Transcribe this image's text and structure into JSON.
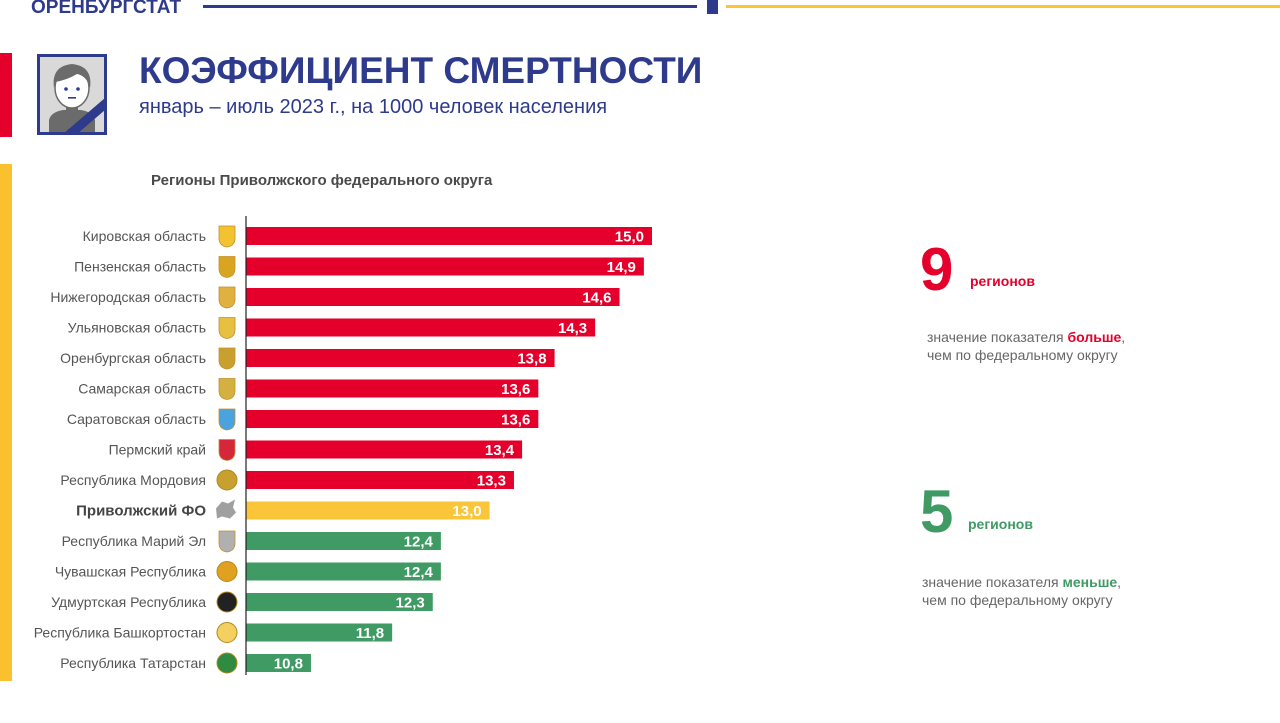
{
  "header": {
    "brand": "ОРЕНБУРГСТАТ",
    "title": "КОЭФФИЦИЕНТ СМЕРТНОСТИ",
    "subtitle": "январь – июль 2023 г., на 1000 человек населения",
    "icon": "portrait-mourning-icon"
  },
  "colors": {
    "brand_blue": "#2e3a8c",
    "above": "#e4002b",
    "average": "#fbc53a",
    "below": "#3f9a63",
    "accent_yellow": "#fbc02d"
  },
  "chart_data": {
    "type": "bar",
    "orientation": "horizontal",
    "title": "Регионы Приволжского федерального округа",
    "xlabel": "",
    "ylabel": "",
    "xlim": [
      10,
      15
    ],
    "grid": false,
    "categories": [
      "Кировская область",
      "Пензенская область",
      "Нижегородская область",
      "Ульяновская область",
      "Оренбургская область",
      "Самарская область",
      "Саратовская область",
      "Пермский край",
      "Республика Мордовия",
      "Приволжский ФО",
      "Республика Марий Эл",
      "Чувашская Республика",
      "Удмуртская Республика",
      "Республика Башкортостан",
      "Республика Татарстан"
    ],
    "values": [
      15.0,
      14.9,
      14.6,
      14.3,
      13.8,
      13.6,
      13.6,
      13.4,
      13.3,
      13.0,
      12.4,
      12.4,
      12.3,
      11.8,
      10.8
    ],
    "labels": [
      "15,0",
      "14,9",
      "14,6",
      "14,3",
      "13,8",
      "13,6",
      "13,6",
      "13,4",
      "13,3",
      "13,0",
      "12,4",
      "12,4",
      "12,3",
      "11,8",
      "10,8"
    ],
    "groups": [
      "above",
      "above",
      "above",
      "above",
      "above",
      "above",
      "above",
      "above",
      "above",
      "average",
      "below",
      "below",
      "below",
      "below",
      "below"
    ],
    "icons": [
      "coat-of-arms-kirov-icon",
      "coat-of-arms-penza-icon",
      "coat-of-arms-nizhny-icon",
      "coat-of-arms-ulyanovsk-icon",
      "coat-of-arms-orenburg-icon",
      "coat-of-arms-samara-icon",
      "coat-of-arms-saratov-icon",
      "coat-of-arms-perm-icon",
      "coat-of-arms-mordovia-icon",
      "federal-district-map-icon",
      "coat-of-arms-mari-el-icon",
      "coat-of-arms-chuvashia-icon",
      "coat-of-arms-udmurtia-icon",
      "coat-of-arms-bashkortostan-icon",
      "coat-of-arms-tatarstan-icon"
    ]
  },
  "summary": {
    "above": {
      "count": "9",
      "unit": "регионов",
      "text_before": "значение показателя ",
      "highlight": "больше",
      "text_after": ",",
      "line2": "чем по федеральному округу"
    },
    "below": {
      "count": "5",
      "unit": "регионов",
      "text_before": "значение показателя ",
      "highlight": "меньше",
      "text_after": ",",
      "line2": "чем по федеральному округу"
    }
  }
}
